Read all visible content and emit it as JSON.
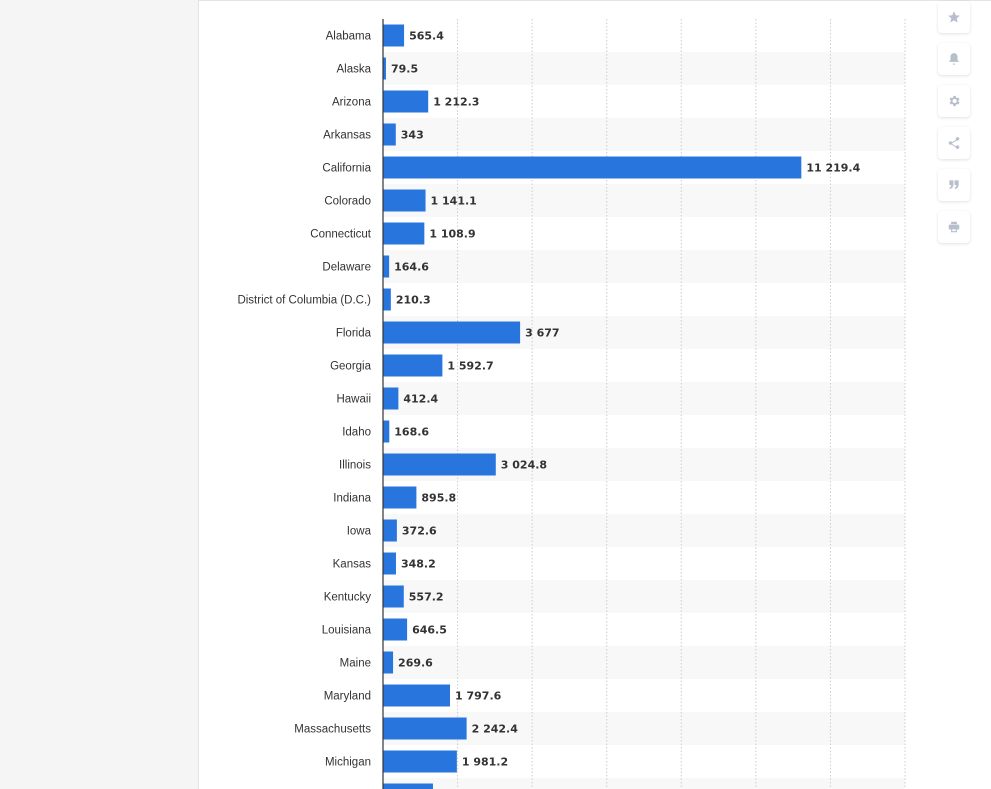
{
  "toolbar": {
    "buttons": [
      {
        "icon": "star-icon"
      },
      {
        "icon": "bell-icon"
      },
      {
        "icon": "gear-icon"
      },
      {
        "icon": "share-icon"
      },
      {
        "icon": "quote-icon"
      },
      {
        "icon": "print-icon"
      }
    ]
  },
  "chart_data": {
    "type": "bar",
    "orientation": "horizontal",
    "bar_color": "#2876dd",
    "xlim": [
      0,
      14000
    ],
    "grid": true,
    "categories": [
      "Alabama",
      "Alaska",
      "Arizona",
      "Arkansas",
      "California",
      "Colorado",
      "Connecticut",
      "Delaware",
      "District of Columbia (D.C.)",
      "Florida",
      "Georgia",
      "Hawaii",
      "Idaho",
      "Illinois",
      "Indiana",
      "Iowa",
      "Kansas",
      "Kentucky",
      "Louisiana",
      "Maine",
      "Maryland",
      "Massachusetts",
      "Michigan",
      ""
    ],
    "values": [
      565.4,
      79.5,
      1212.3,
      343,
      11219.4,
      1141.1,
      1108.9,
      164.6,
      210.3,
      3677,
      1592.7,
      412.4,
      168.6,
      3024.8,
      895.8,
      372.6,
      348.2,
      557.2,
      646.5,
      269.6,
      1797.6,
      2242.4,
      1981.2,
      1340
    ],
    "value_labels": [
      "565.4",
      "79.5",
      "1 212.3",
      "343",
      "11 219.4",
      "1 141.1",
      "1 108.9",
      "164.6",
      "210.3",
      "3 677",
      "1 592.7",
      "412.4",
      "168.6",
      "3 024.8",
      "895.8",
      "372.6",
      "348.2",
      "557.2",
      "646.5",
      "269.6",
      "1 797.6",
      "2 242.4",
      "1 981.2",
      ""
    ]
  }
}
